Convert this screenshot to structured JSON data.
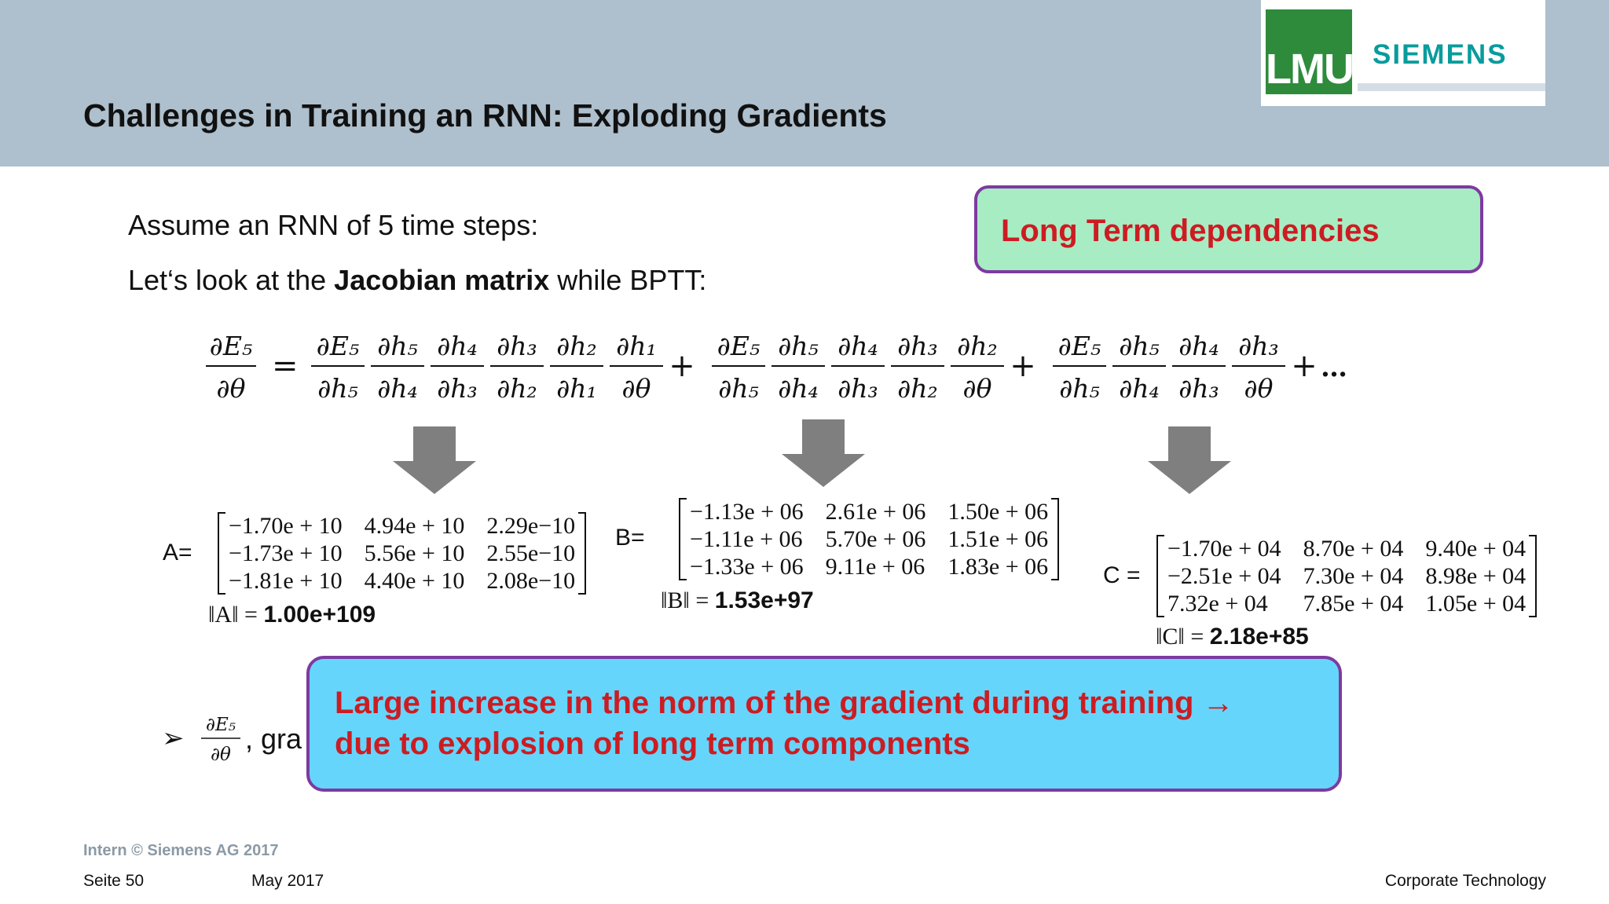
{
  "header": {
    "title": "Challenges in Training an RNN: Exploding Gradients",
    "logo_lmu": "LMU",
    "logo_siemens": "SIEMENS"
  },
  "content": {
    "line1": "Assume an RNN of 5 time steps:",
    "line2_pre": "Let‘s look at the ",
    "line2_bold": "Jacobian matrix",
    "line2_post": " while BPTT:",
    "callout_top": "Long Term dependencies",
    "callout_bottom_line1": "Large increase in the norm of the gradient during training →",
    "callout_bottom_line2": "due to explosion of long term components",
    "bullet_text": ", gra"
  },
  "equation": {
    "lhs_num": "∂E₅",
    "lhs_den": "∂θ",
    "equals": "=",
    "term1_num": [
      "∂E₅",
      "∂h₅",
      "∂h₄",
      "∂h₃",
      "∂h₂",
      "∂h₁"
    ],
    "term1_den": [
      "∂h₅",
      "∂h₄",
      "∂h₃",
      "∂h₂",
      "∂h₁",
      "∂θ"
    ],
    "term2_num": [
      "∂E₅",
      "∂h₅",
      "∂h₄",
      "∂h₃",
      "∂h₂"
    ],
    "term2_den": [
      "∂h₅",
      "∂h₄",
      "∂h₃",
      "∂h₂",
      "∂θ"
    ],
    "term3_num": [
      "∂E₅",
      "∂h₅",
      "∂h₄",
      "∂h₃"
    ],
    "term3_den": [
      "∂h₅",
      "∂h₄",
      "∂h₃",
      "∂θ"
    ],
    "plus": "+",
    "ellipsis": "…"
  },
  "matrices": {
    "A": {
      "label": "A=",
      "rows": [
        [
          "−1.70e + 10",
          "4.94e + 10",
          "2.29e−10"
        ],
        [
          "−1.73e + 10",
          "5.56e + 10",
          "2.55e−10"
        ],
        [
          "−1.81e + 10",
          "4.40e + 10",
          "2.08e−10"
        ]
      ],
      "norm_label": "‖A‖ = ",
      "norm_value": "1.00e+109"
    },
    "B": {
      "label": "B=",
      "rows": [
        [
          "−1.13e + 06",
          "2.61e + 06",
          "1.50e + 06"
        ],
        [
          "−1.11e + 06",
          "5.70e + 06",
          "1.51e + 06"
        ],
        [
          "−1.33e + 06",
          "9.11e + 06",
          "1.83e + 06"
        ]
      ],
      "norm_label": "‖B‖ = ",
      "norm_value": "1.53e+97"
    },
    "C": {
      "label": "C =",
      "rows": [
        [
          "−1.70e + 04",
          "8.70e + 04",
          "9.40e + 04"
        ],
        [
          "−2.51e + 04",
          "7.30e + 04",
          "8.98e + 04"
        ],
        [
          "7.32e + 04",
          "7.85e + 04",
          "1.05e + 04"
        ]
      ],
      "norm_label": "‖C‖ = ",
      "norm_value": "2.18e+85"
    }
  },
  "footer": {
    "copyright": "Intern © Siemens AG 2017",
    "page": "Seite 50",
    "date": "May 2017",
    "department": "Corporate Technology"
  },
  "colors": {
    "header_bg": "#aebfcd",
    "callout_green": "#a8ecc4",
    "callout_blue": "#66d5fb",
    "callout_border": "#7d3aa0",
    "callout_text": "#cc1c22",
    "arrow": "#7f7f7f",
    "lmu_green": "#2e8b3c",
    "siemens_teal": "#089c9c"
  }
}
